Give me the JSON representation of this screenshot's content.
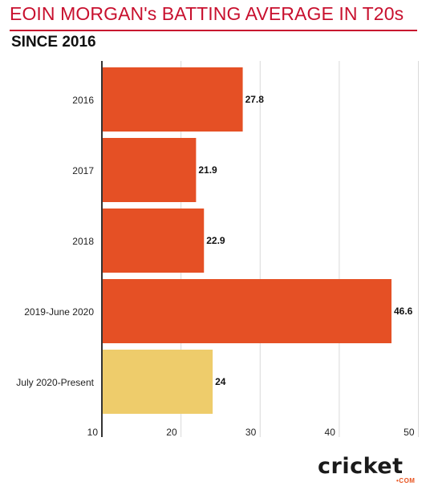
{
  "header": {
    "title": "EOIN MORGAN's BATTING AVERAGE IN T20s",
    "subtitle": "SINCE 2016"
  },
  "colors": {
    "bar": "#e55025",
    "highlight": "#eecc6b",
    "title": "#c8102e",
    "grid": "#d9d9d9",
    "axis": "#333333"
  },
  "chart_data": {
    "type": "bar",
    "orientation": "horizontal",
    "title": "EOIN MORGAN's BATTING AVERAGE IN T20s",
    "subtitle": "SINCE 2016",
    "categories": [
      "2016",
      "2017",
      "2018",
      "2019-June 2020",
      "July 2020-Present"
    ],
    "values": [
      27.8,
      21.9,
      22.9,
      46.6,
      24
    ],
    "value_labels": [
      "27.8",
      "21.9",
      "22.9",
      "46.6",
      "24"
    ],
    "highlight_index": 4,
    "xlim": [
      10,
      51
    ],
    "xticks": [
      "10",
      "20",
      "30",
      "40",
      "50"
    ],
    "xlabel": "",
    "ylabel": "",
    "grid": true
  },
  "logo": {
    "word": "cricket",
    "suffix": "•COM"
  }
}
